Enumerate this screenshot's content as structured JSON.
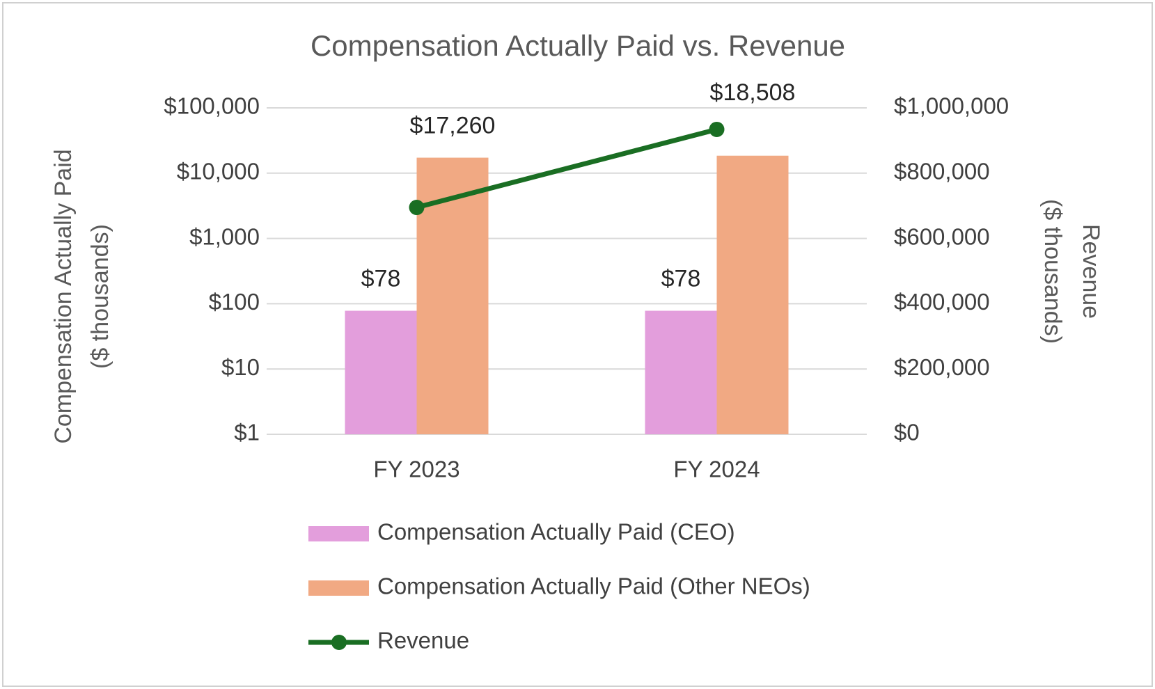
{
  "chart_data": {
    "type": "bar",
    "title": "Compensation Actually Paid vs. Revenue",
    "ylabel": [
      "Compensation Actually Paid",
      "($ thousands)"
    ],
    "y2label": [
      "Revenue",
      "($ thousands)"
    ],
    "categories": [
      "FY 2023",
      "FY 2024"
    ],
    "ylog": true,
    "ylim": [
      1,
      100000
    ],
    "yticks": [
      {
        "value": 1,
        "label": "$1"
      },
      {
        "value": 10,
        "label": "$10"
      },
      {
        "value": 100,
        "label": "$100"
      },
      {
        "value": 1000,
        "label": "$1,000"
      },
      {
        "value": 10000,
        "label": "$10,000"
      },
      {
        "value": 100000,
        "label": "$100,000"
      }
    ],
    "y2lim": [
      0,
      1000000
    ],
    "y2ticks": [
      {
        "value": 0,
        "label": "$0"
      },
      {
        "value": 200000,
        "label": "$200,000"
      },
      {
        "value": 400000,
        "label": "$400,000"
      },
      {
        "value": 600000,
        "label": "$600,000"
      },
      {
        "value": 800000,
        "label": "$800,000"
      },
      {
        "value": 1000000,
        "label": "$1,000,000"
      }
    ],
    "grid": true,
    "legend": "bottom",
    "series": [
      {
        "name": "Compensation Actually Paid (CEO)",
        "type": "bar",
        "color": "#e39edc",
        "values": [
          78,
          78
        ],
        "value_labels": [
          "$78",
          "$78"
        ]
      },
      {
        "name": "Compensation Actually Paid (Other NEOs)",
        "type": "bar",
        "color": "#f1a983",
        "values": [
          17260,
          18508
        ],
        "value_labels": [
          "$17,260",
          "$18,508"
        ]
      },
      {
        "name": "Revenue",
        "type": "line",
        "axis": "y2",
        "color": "#1a6e23",
        "values": [
          695000,
          934000
        ]
      }
    ]
  }
}
